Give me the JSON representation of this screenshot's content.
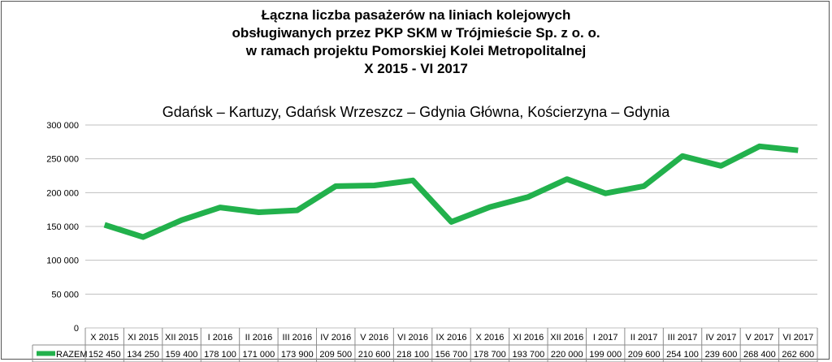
{
  "chart_data": {
    "type": "line",
    "title_lines": [
      "Łączna liczba pasażerów na liniach kolejowych",
      "obsługiwanych przez PKP SKM w Trójmieście Sp. z o. o.",
      "w ramach projektu Pomorskiej Kolei Metropolitalnej",
      "X 2015 - VI 2017"
    ],
    "subtitle": "Gdańsk – Kartuzy, Gdańsk Wrzeszcz – Gdynia Główna, Kościerzyna – Gdynia",
    "xlabel": "",
    "ylabel": "",
    "ylim": [
      0,
      300000
    ],
    "y_ticks": [
      0,
      50000,
      100000,
      150000,
      200000,
      250000,
      300000
    ],
    "y_tick_labels": [
      "0",
      "50 000",
      "100 000",
      "150 000",
      "200 000",
      "250 000",
      "300 000"
    ],
    "grid": true,
    "legend": "data-table",
    "categories": [
      "X 2015",
      "XI 2015",
      "XII 2015",
      "I 2016",
      "II 2016",
      "III 2016",
      "IV 2016",
      "V 2016",
      "VI 2016",
      "IX 2016",
      "X 2016",
      "XI 2016",
      "XII 2016",
      "I 2017",
      "II 2017",
      "III 2017",
      "IV 2017",
      "V 2017",
      "VI 2017"
    ],
    "series": [
      {
        "name": "RAZEM",
        "color": "#22b14c",
        "values": [
          152450,
          134250,
          159400,
          178100,
          171000,
          173900,
          209500,
          210600,
          218100,
          156700,
          178700,
          193700,
          220000,
          199000,
          209600,
          254100,
          239600,
          268400,
          262600
        ],
        "value_labels": [
          "152 450",
          "134 250",
          "159 400",
          "178 100",
          "171 000",
          "173 900",
          "209 500",
          "210 600",
          "218 100",
          "156 700",
          "178 700",
          "193 700",
          "220 000",
          "199 000",
          "209 600",
          "254 100",
          "239 600",
          "268 400",
          "262 600"
        ]
      }
    ]
  }
}
